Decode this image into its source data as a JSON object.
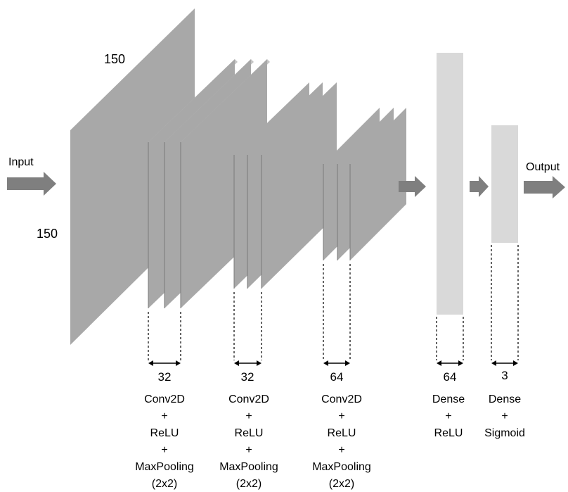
{
  "input_label": "Input",
  "output_label": "Output",
  "input_size": {
    "height": "150",
    "width": "150"
  },
  "blocks": [
    {
      "filters": "32",
      "lines": [
        "Conv2D",
        "+",
        "ReLU",
        "+",
        "MaxPooling",
        "(2x2)"
      ]
    },
    {
      "filters": "32",
      "lines": [
        "Conv2D",
        "+",
        "ReLU",
        "+",
        "MaxPooling",
        "(2x2)"
      ]
    },
    {
      "filters": "64",
      "lines": [
        "Conv2D",
        "+",
        "ReLU",
        "+",
        "MaxPooling",
        "(2x2)"
      ]
    },
    {
      "filters": "64",
      "lines": [
        "Dense",
        "+",
        "ReLU"
      ]
    },
    {
      "filters": "3",
      "lines": [
        "Dense",
        "+",
        "Sigmoid"
      ]
    }
  ],
  "colors": {
    "plane": "#a8a8a8",
    "dense": "#d9d9d9",
    "arrow": "#7f7f7f"
  }
}
